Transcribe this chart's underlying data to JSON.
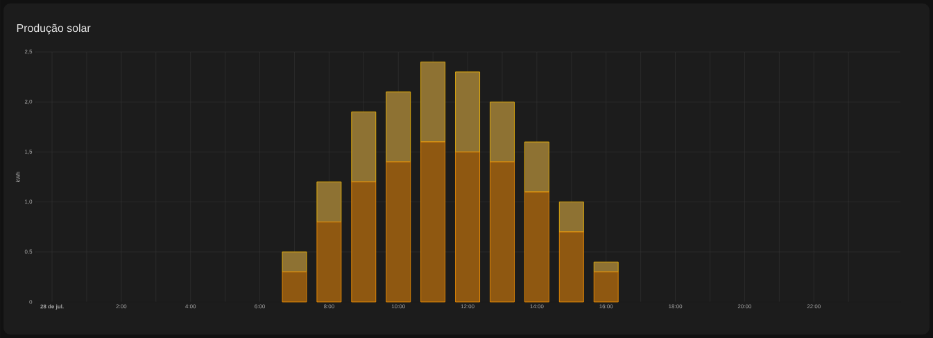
{
  "chart_data": {
    "type": "bar",
    "title": "Produção solar",
    "ylabel": "kWh",
    "stacked": true,
    "grid": true,
    "x": [
      7,
      8,
      9,
      10,
      11,
      12,
      13,
      14,
      15,
      16
    ],
    "series": [
      {
        "color": "#8f5811",
        "values": [
          0.3,
          0.8,
          1.2,
          1.4,
          1.6,
          1.5,
          1.4,
          1.1,
          0.7,
          0.3
        ]
      },
      {
        "color": "#8e7233",
        "values": [
          0.2,
          0.4,
          0.7,
          0.7,
          0.8,
          0.8,
          0.6,
          0.5,
          0.3,
          0.1
        ]
      }
    ],
    "xlim": [
      -0.5,
      24.5
    ],
    "xticks": [
      {
        "value": 0,
        "label": "**28 de jul.**"
      },
      {
        "value": 1,
        "label": null
      },
      {
        "value": 2,
        "label": "2:00"
      },
      {
        "value": 3,
        "label": null
      },
      {
        "value": 4,
        "label": "4:00"
      },
      {
        "value": 5,
        "label": null
      },
      {
        "value": 6,
        "label": "6:00"
      },
      {
        "value": 7,
        "label": null
      },
      {
        "value": 8,
        "label": "8:00"
      },
      {
        "value": 9,
        "label": null
      },
      {
        "value": 10,
        "label": "10:00"
      },
      {
        "value": 11,
        "label": null
      },
      {
        "value": 12,
        "label": "12:00"
      },
      {
        "value": 13,
        "label": null
      },
      {
        "value": 14,
        "label": "14:00"
      },
      {
        "value": 15,
        "label": null
      },
      {
        "value": 16,
        "label": "16:00"
      },
      {
        "value": 17,
        "label": null
      },
      {
        "value": 18,
        "label": "18:00"
      },
      {
        "value": 19,
        "label": null
      },
      {
        "value": 20,
        "label": "20:00"
      },
      {
        "value": 21,
        "label": null
      },
      {
        "value": 22,
        "label": "22:00"
      },
      {
        "value": 23,
        "label": null
      }
    ],
    "ylim": [
      0,
      2.5
    ],
    "yticks": [
      0,
      {
        "value": 0.5,
        "label": "0,5"
      },
      {
        "value": 1,
        "label": "1,0"
      },
      {
        "value": 1.5,
        "label": "1,5"
      },
      {
        "value": 2,
        "label": "2,0"
      },
      {
        "value": 2.5,
        "label": "2,5"
      }
    ]
  }
}
